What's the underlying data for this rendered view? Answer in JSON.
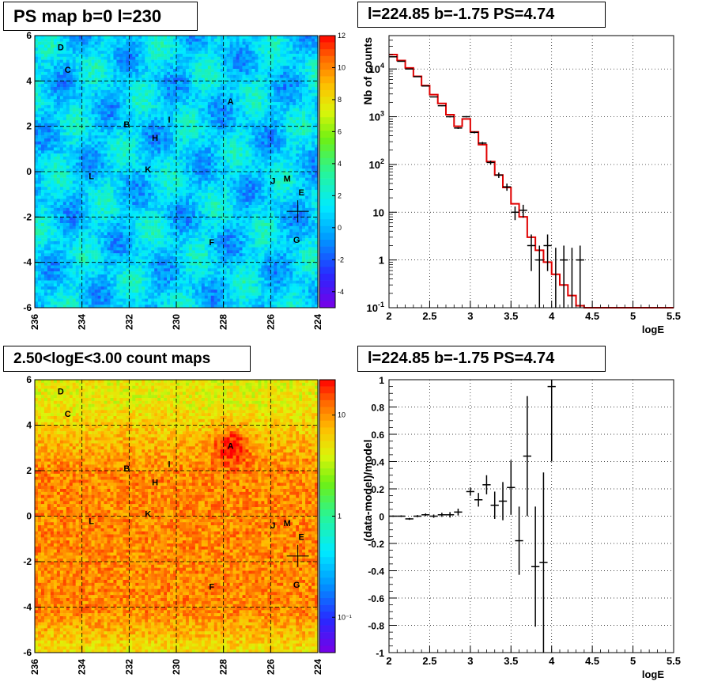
{
  "panels": {
    "tl": {
      "title": "PS map b=0 l=230"
    },
    "tr": {
      "title": "l=224.85 b=-1.75 PS=4.74"
    },
    "bl": {
      "title": "2.50<logE<3.00 count maps"
    },
    "br": {
      "title": "l=224.85 b=-1.75 PS=4.74"
    }
  },
  "chart_data": [
    {
      "type": "heatmap",
      "title": "PS map b=0 l=230",
      "x_range": [
        236,
        224
      ],
      "y_range": [
        -6,
        6
      ],
      "x_ticks": [
        "236",
        "234",
        "232",
        "230",
        "228",
        "226",
        "224"
      ],
      "y_ticks": [
        "-6",
        "-4",
        "-2",
        "0",
        "2",
        "4",
        "6"
      ],
      "colorbar": {
        "range": [
          -5,
          12
        ],
        "ticks": [
          "-4",
          "-2",
          "0",
          "2",
          "4",
          "6",
          "8",
          "10",
          "12"
        ]
      },
      "sources": [
        {
          "label": "D",
          "l": 234.9,
          "b": 5.5
        },
        {
          "label": "C",
          "l": 234.6,
          "b": 4.5
        },
        {
          "label": "A",
          "l": 227.7,
          "b": 3.1
        },
        {
          "label": "B",
          "l": 232.1,
          "b": 2.1
        },
        {
          "label": "I",
          "l": 230.3,
          "b": 2.3
        },
        {
          "label": "H",
          "l": 230.9,
          "b": 1.5
        },
        {
          "label": "K",
          "l": 231.2,
          "b": 0.1
        },
        {
          "label": "L",
          "l": 233.6,
          "b": -0.2
        },
        {
          "label": "J",
          "l": 225.9,
          "b": -0.4
        },
        {
          "label": "M",
          "l": 225.3,
          "b": -0.3
        },
        {
          "label": "E",
          "l": 224.7,
          "b": -0.9
        },
        {
          "label": "F",
          "l": 228.5,
          "b": -3.1
        },
        {
          "label": "G",
          "l": 224.9,
          "b": -3.0
        }
      ],
      "marker": {
        "l": 224.85,
        "b": -1.75
      }
    },
    {
      "type": "line",
      "title": "l=224.85 b=-1.75 PS=4.74",
      "xlabel": "logE",
      "ylabel": "Nb of counts",
      "x_range": [
        2,
        5.5
      ],
      "y_range": [
        0.1,
        50000
      ],
      "y_scale": "log",
      "x_ticks": [
        "2",
        "2.5",
        "3",
        "3.5",
        "4",
        "4.5",
        "5",
        "5.5"
      ],
      "y_ticks": [
        "10⁻¹",
        "1",
        "10",
        "10²",
        "10³",
        "10⁴"
      ],
      "grid": true,
      "data": {
        "x": [
          2.0,
          2.1,
          2.2,
          2.3,
          2.4,
          2.5,
          2.6,
          2.7,
          2.8,
          2.9,
          3.0,
          3.1,
          3.2,
          3.3,
          3.4,
          3.5,
          3.6,
          3.7,
          3.8,
          3.9,
          4.0,
          4.1,
          4.2,
          4.3
        ],
        "y": [
          18000,
          14500,
          10000,
          6900,
          4400,
          2600,
          1700,
          1000,
          580,
          1000,
          470,
          280,
          110,
          60,
          34,
          10,
          11,
          2,
          1,
          2,
          0,
          1,
          0,
          1
        ]
      },
      "model": {
        "x": [
          2.0,
          2.1,
          2.2,
          2.3,
          2.4,
          2.5,
          2.6,
          2.7,
          2.8,
          2.9,
          3.0,
          3.1,
          3.2,
          3.3,
          3.4,
          3.5,
          3.6,
          3.7,
          3.8,
          3.9,
          4.0,
          4.1,
          4.2,
          4.3,
          4.4,
          5.5
        ],
        "y": [
          20000,
          15000,
          10500,
          7000,
          4500,
          2900,
          1900,
          1100,
          630,
          900,
          480,
          260,
          115,
          60,
          33,
          15,
          8,
          3,
          1.6,
          0.9,
          0.5,
          0.3,
          0.18,
          0.11,
          0.1,
          0.1
        ]
      }
    },
    {
      "type": "heatmap",
      "title": "2.50<logE<3.00 count maps",
      "x_range": [
        236,
        224
      ],
      "y_range": [
        -6,
        6
      ],
      "x_ticks": [
        "236",
        "234",
        "232",
        "230",
        "228",
        "226",
        "224"
      ],
      "y_ticks": [
        "-6",
        "-4",
        "-2",
        "0",
        "2",
        "4",
        "6"
      ],
      "colorbar": {
        "scale": "log",
        "ticks": [
          "10⁻¹",
          "1",
          "10"
        ]
      },
      "sources": [
        {
          "label": "D",
          "l": 234.9,
          "b": 5.5
        },
        {
          "label": "C",
          "l": 234.6,
          "b": 4.5
        },
        {
          "label": "A",
          "l": 227.7,
          "b": 3.1
        },
        {
          "label": "B",
          "l": 232.1,
          "b": 2.1
        },
        {
          "label": "I",
          "l": 230.3,
          "b": 2.3
        },
        {
          "label": "H",
          "l": 230.9,
          "b": 1.5
        },
        {
          "label": "K",
          "l": 231.2,
          "b": 0.1
        },
        {
          "label": "L",
          "l": 233.6,
          "b": -0.2
        },
        {
          "label": "J",
          "l": 225.9,
          "b": -0.4
        },
        {
          "label": "M",
          "l": 225.3,
          "b": -0.3
        },
        {
          "label": "E",
          "l": 224.7,
          "b": -0.9
        },
        {
          "label": "F",
          "l": 228.5,
          "b": -3.1
        },
        {
          "label": "G",
          "l": 224.9,
          "b": -3.0
        }
      ],
      "marker": {
        "l": 224.85,
        "b": -1.75
      }
    },
    {
      "type": "scatter",
      "title": "l=224.85 b=-1.75 PS=4.74",
      "xlabel": "logE",
      "ylabel": "(data-model)/model",
      "x_range": [
        2,
        5.5
      ],
      "y_range": [
        -1,
        1
      ],
      "x_ticks": [
        "2",
        "2.5",
        "3",
        "3.5",
        "4",
        "4.5",
        "5",
        "5.5"
      ],
      "y_ticks": [
        "-1",
        "-0.8",
        "-0.6",
        "-0.4",
        "-0.2",
        "0",
        "0.2",
        "0.4",
        "0.6",
        "0.8",
        "1"
      ],
      "grid": true,
      "data": {
        "x": [
          2.0,
          2.1,
          2.2,
          2.3,
          2.4,
          2.5,
          2.6,
          2.7,
          2.8,
          2.95,
          3.05,
          3.15,
          3.25,
          3.35,
          3.45,
          3.55,
          3.65,
          3.75,
          3.85,
          3.95
        ],
        "y": [
          0,
          0,
          -0.02,
          0,
          0.01,
          0,
          0.01,
          0.01,
          0.03,
          0.18,
          0.12,
          0.23,
          0.08,
          0.11,
          0.21,
          -0.18,
          0.44,
          -0.37,
          -0.34,
          0.95
        ],
        "err": [
          0.005,
          0.006,
          0.007,
          0.008,
          0.01,
          0.012,
          0.015,
          0.02,
          0.025,
          0.03,
          0.05,
          0.07,
          0.1,
          0.14,
          0.2,
          0.25,
          0.44,
          0.44,
          0.66,
          0.55
        ]
      }
    }
  ]
}
